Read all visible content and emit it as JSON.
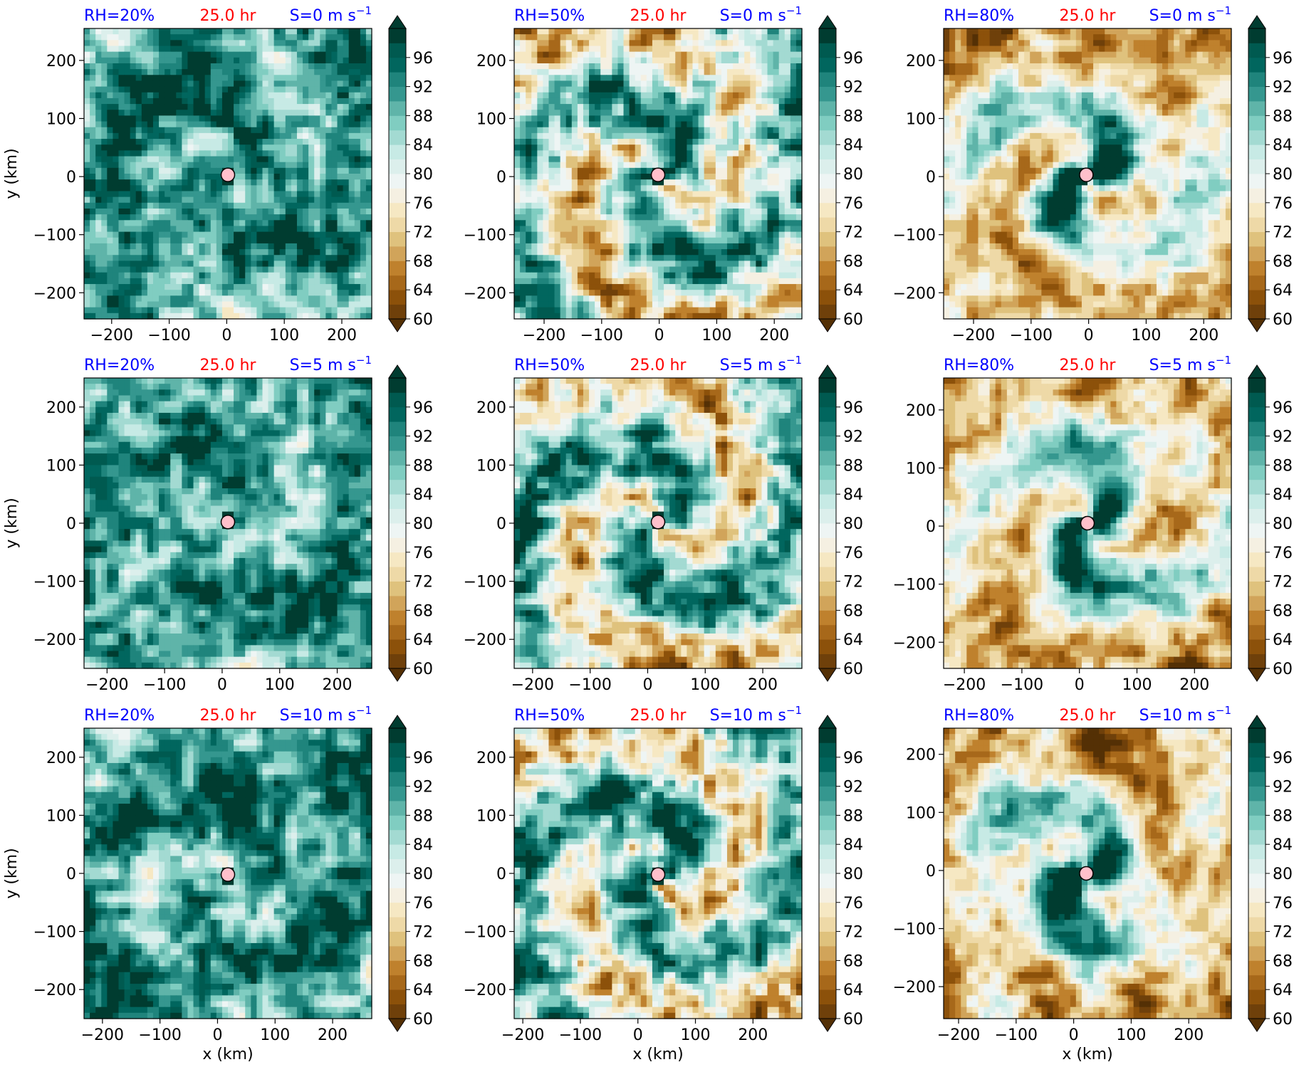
{
  "figure": {
    "colorbar": {
      "min": 60,
      "max": 100,
      "step": 2,
      "extend": "both",
      "tick_labels": [
        "60",
        "64",
        "68",
        "72",
        "76",
        "80",
        "84",
        "88",
        "92",
        "96"
      ],
      "colormap": "BrBG",
      "colors": [
        "#543005",
        "#6f400a",
        "#8c510a",
        "#a7681a",
        "#bf812d",
        "#d1a45a",
        "#dfc27d",
        "#eed9a7",
        "#f6e8c3",
        "#f5f0e2",
        "#eef5f4",
        "#dcefec",
        "#c7eae5",
        "#a3dad2",
        "#80cdc1",
        "#5fb4a9",
        "#35978f",
        "#1f847c",
        "#01665e",
        "#005a50",
        "#003c30"
      ]
    },
    "xlabel": "x (km)",
    "ylabel": "y (km)",
    "time_label": "25.0 hr",
    "colors": {
      "rh_label": "#0000ff",
      "shear_label": "#0000ff",
      "time_label": "#ff0000",
      "center_marker": "#ffc0cb"
    }
  },
  "chart_data": [
    {
      "type": "heatmap",
      "row": 0,
      "col": 0,
      "rh_label": "RH=20%",
      "shear_label": "S=0 m s",
      "shear_exp": "−1",
      "time_label": "25.0 hr",
      "xlim": [
        -248,
        252
      ],
      "ylim": [
        -245,
        255
      ],
      "xticks": [
        -200,
        -100,
        0,
        100,
        200
      ],
      "yticks": [
        -200,
        -100,
        0,
        100,
        200
      ],
      "center": [
        2,
        3
      ],
      "moisture_mode": "moist",
      "field_note": "shaded relative humidity (%) on 60-100 scale"
    },
    {
      "type": "heatmap",
      "row": 0,
      "col": 1,
      "rh_label": "RH=50%",
      "shear_label": "S=0 m s",
      "shear_exp": "−1",
      "time_label": "25.0 hr",
      "xlim": [
        -252,
        248
      ],
      "ylim": [
        -245,
        255
      ],
      "xticks": [
        -200,
        -100,
        0,
        100,
        200
      ],
      "yticks": [
        -200,
        -100,
        0,
        100,
        200
      ],
      "center": [
        -2,
        3
      ],
      "moisture_mode": "mixed"
    },
    {
      "type": "heatmap",
      "row": 0,
      "col": 2,
      "rh_label": "RH=80%",
      "shear_label": "S=0 m s",
      "shear_exp": "−1",
      "time_label": "25.0 hr",
      "xlim": [
        -252,
        248
      ],
      "ylim": [
        -245,
        255
      ],
      "xticks": [
        -200,
        -100,
        0,
        100,
        200
      ],
      "yticks": [
        -200,
        -100,
        0,
        100,
        200
      ],
      "center": [
        -4,
        3
      ],
      "moisture_mode": "dry"
    },
    {
      "type": "heatmap",
      "row": 1,
      "col": 0,
      "rh_label": "RH=20%",
      "shear_label": "S=5 m s",
      "shear_exp": "−1",
      "time_label": "25.0 hr",
      "xlim": [
        -240,
        260
      ],
      "ylim": [
        -250,
        250
      ],
      "xticks": [
        -200,
        -100,
        0,
        100,
        200
      ],
      "yticks": [
        -200,
        -100,
        0,
        100,
        200
      ],
      "center": [
        10,
        2
      ],
      "moisture_mode": "moist"
    },
    {
      "type": "heatmap",
      "row": 1,
      "col": 1,
      "rh_label": "RH=50%",
      "shear_label": "S=5 m s",
      "shear_exp": "−1",
      "time_label": "25.0 hr",
      "xlim": [
        -232,
        268
      ],
      "ylim": [
        -250,
        250
      ],
      "xticks": [
        -200,
        -100,
        0,
        100,
        200
      ],
      "yticks": [
        -200,
        -100,
        0,
        100,
        200
      ],
      "center": [
        18,
        2
      ],
      "moisture_mode": "mixed"
    },
    {
      "type": "heatmap",
      "row": 1,
      "col": 2,
      "rh_label": "RH=80%",
      "shear_label": "S=5 m s",
      "shear_exp": "−1",
      "time_label": "25.0 hr",
      "xlim": [
        -236,
        264
      ],
      "ylim": [
        -245,
        255
      ],
      "xticks": [
        -200,
        -100,
        0,
        100,
        200
      ],
      "yticks": [
        -200,
        -100,
        0,
        100,
        200
      ],
      "center": [
        14,
        5
      ],
      "moisture_mode": "dry"
    },
    {
      "type": "heatmap",
      "row": 2,
      "col": 0,
      "rh_label": "RH=20%",
      "shear_label": "S=10 m s",
      "shear_exp": "−1",
      "time_label": "25.0 hr",
      "xlim": [
        -232,
        268
      ],
      "ylim": [
        -250,
        250
      ],
      "xticks": [
        -200,
        -100,
        0,
        100,
        200
      ],
      "yticks": [
        -200,
        -100,
        0,
        100,
        200
      ],
      "center": [
        18,
        -2
      ],
      "moisture_mode": "moist"
    },
    {
      "type": "heatmap",
      "row": 2,
      "col": 1,
      "rh_label": "RH=50%",
      "shear_label": "S=10 m s",
      "shear_exp": "−1",
      "time_label": "25.0 hr",
      "xlim": [
        -215,
        285
      ],
      "ylim": [
        -250,
        250
      ],
      "xticks": [
        -200,
        -100,
        0,
        100,
        200
      ],
      "yticks": [
        -200,
        -100,
        0,
        100,
        200
      ],
      "center": [
        35,
        -2
      ],
      "moisture_mode": "mixed"
    },
    {
      "type": "heatmap",
      "row": 2,
      "col": 2,
      "rh_label": "RH=80%",
      "shear_label": "S=10 m s",
      "shear_exp": "−1",
      "time_label": "25.0 hr",
      "xlim": [
        -226,
        274
      ],
      "ylim": [
        -255,
        245
      ],
      "xticks": [
        -200,
        -100,
        0,
        100,
        200
      ],
      "yticks": [
        -200,
        -100,
        0,
        100,
        200
      ],
      "center": [
        22,
        -5
      ],
      "moisture_mode": "dry"
    }
  ]
}
